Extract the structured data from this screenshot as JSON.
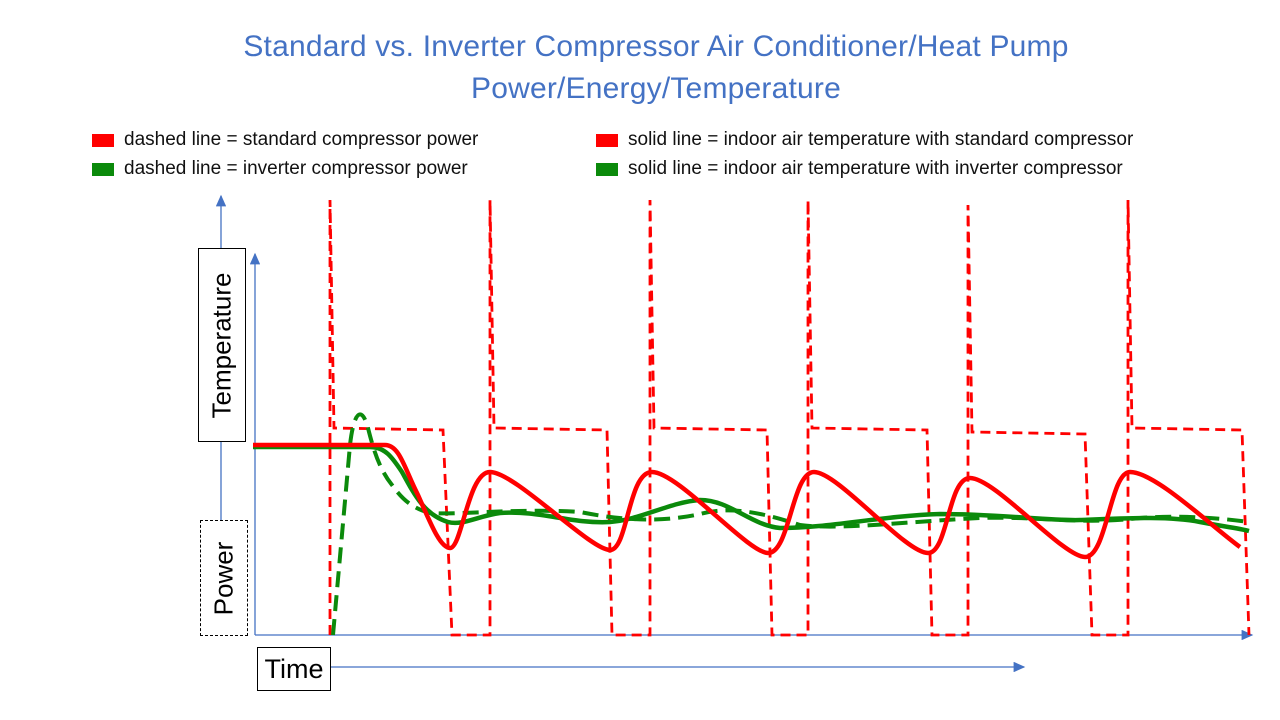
{
  "title": {
    "line1": "Standard vs. Inverter Compressor Air Conditioner/Heat Pump",
    "line2": "Power/Energy/Temperature"
  },
  "legend": [
    {
      "label": "dashed line = standard compressor power",
      "color": "#ff0000"
    },
    {
      "label": "dashed line = inverter compressor power",
      "color": "#0b8a0b"
    },
    {
      "label": "solid line = indoor air temperature with standard compressor",
      "color": "#ff0000"
    },
    {
      "label": "solid line = indoor air temperature with inverter compressor",
      "color": "#0b8a0b"
    }
  ],
  "axes": {
    "temperature_label": "Temperature",
    "power_label": "Power",
    "time_label": "Time",
    "axis_color": "#4472c4"
  },
  "colors": {
    "standard": "#ff0000",
    "inverter": "#0b8a0b"
  }
}
